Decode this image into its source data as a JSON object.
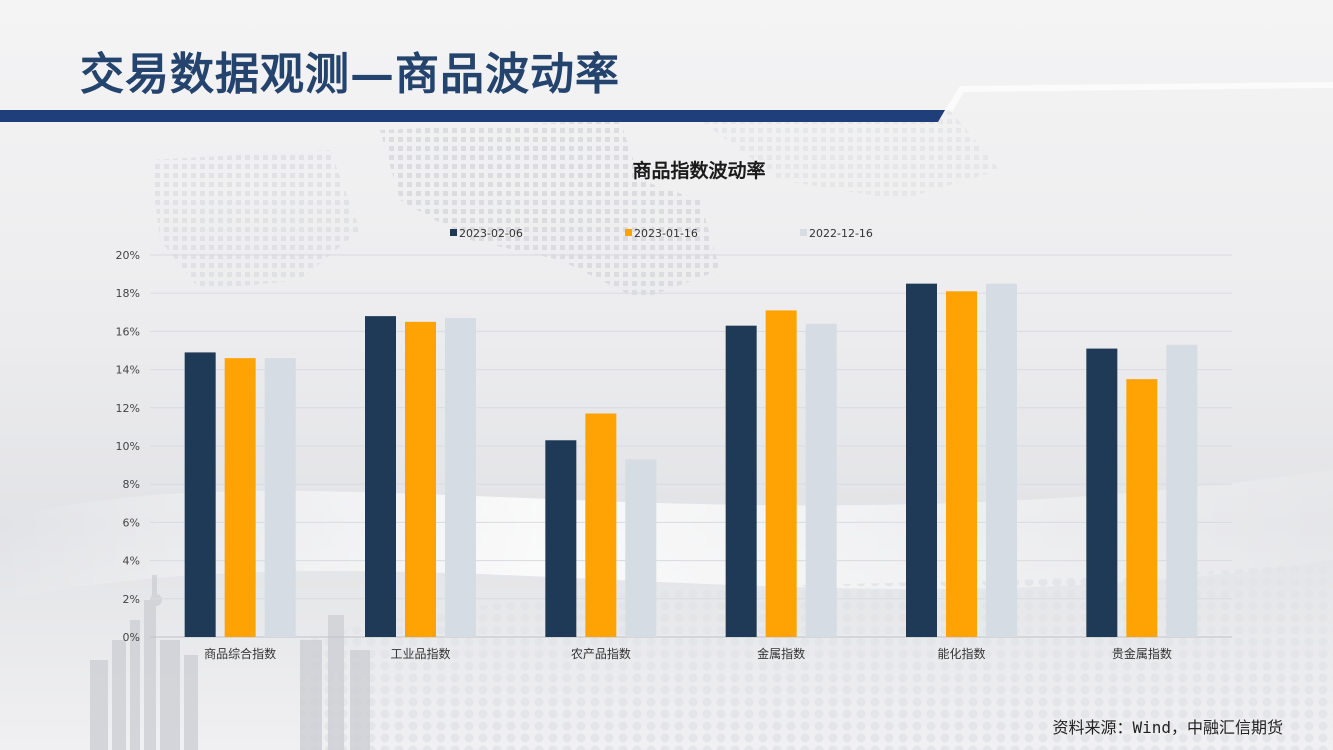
{
  "header": {
    "title": "交易数据观测—商品波动率"
  },
  "footer": {
    "source": "资料来源：Wind，中融汇信期货"
  },
  "colors": {
    "header_bar": "#1f3f7a",
    "title": "#24446e"
  },
  "chart_data": {
    "type": "bar",
    "title": "商品指数波动率",
    "xlabel": "",
    "ylabel": "",
    "categories": [
      "商品综合指数",
      "工业品指数",
      "农产品指数",
      "金属指数",
      "能化指数",
      "贵金属指数"
    ],
    "series": [
      {
        "name": "2023-02-06",
        "color": "#1f3a56",
        "values": [
          14.9,
          16.8,
          10.3,
          16.3,
          18.5,
          15.1
        ]
      },
      {
        "name": "2023-01-16",
        "color": "#ffa305",
        "values": [
          14.6,
          16.5,
          11.7,
          17.1,
          18.1,
          13.5
        ]
      },
      {
        "name": "2022-12-16",
        "color": "#d6dce3",
        "values": [
          14.6,
          16.7,
          9.3,
          16.4,
          18.5,
          15.3
        ]
      }
    ],
    "ylim": [
      0,
      20
    ],
    "yticks": [
      0,
      2,
      4,
      6,
      8,
      10,
      12,
      14,
      16,
      18,
      20
    ],
    "ytick_labels": [
      "0%",
      "2%",
      "4%",
      "6%",
      "8%",
      "10%",
      "12%",
      "14%",
      "16%",
      "18%",
      "20%"
    ],
    "grid": true,
    "legend": "top"
  }
}
